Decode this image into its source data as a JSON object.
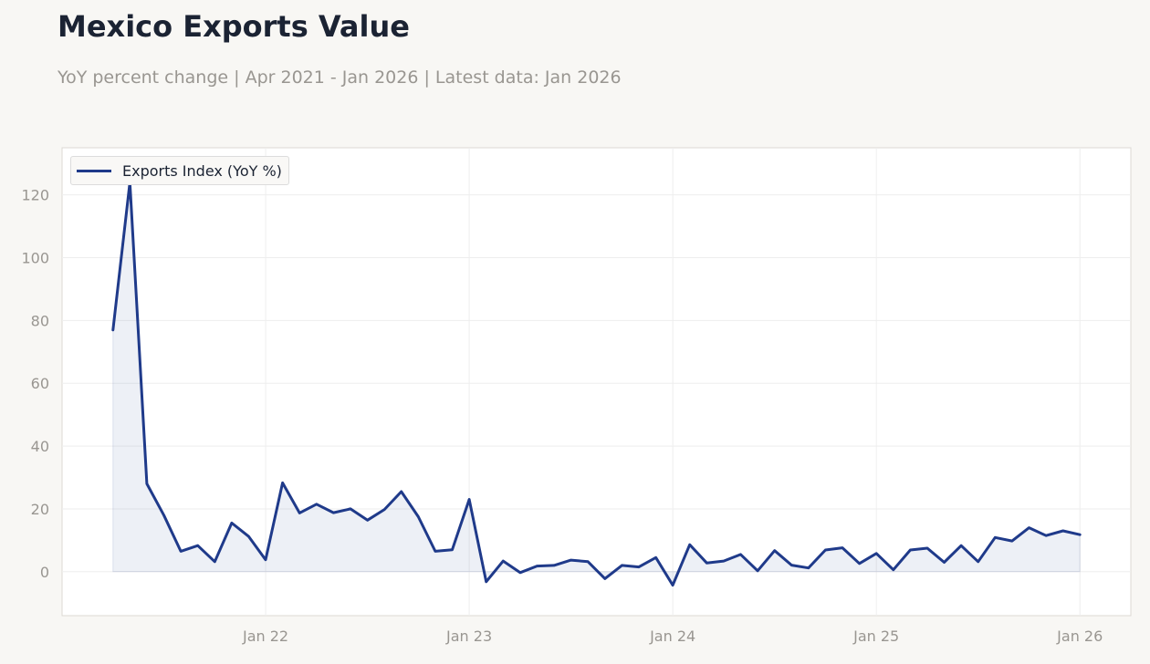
{
  "title": "Mexico Exports Value",
  "subtitle": "YoY percent change | Apr 2021 - Jan 2026 | Latest data: Jan 2026",
  "chart_data": {
    "type": "area",
    "title": "Mexico Exports Value",
    "subtitle": "YoY percent change | Apr 2021 - Jan 2026 | Latest data: Jan 2026",
    "xlabel": "",
    "ylabel": "",
    "ylim": [
      -14,
      135
    ],
    "xlim": [
      "2021-01",
      "2026-04"
    ],
    "yticks": [
      0,
      20,
      40,
      60,
      80,
      100,
      120
    ],
    "xticks": [
      {
        "date": "2022-01",
        "label": "Jan 22"
      },
      {
        "date": "2023-01",
        "label": "Jan 23"
      },
      {
        "date": "2024-01",
        "label": "Jan 24"
      },
      {
        "date": "2025-01",
        "label": "Jan 25"
      },
      {
        "date": "2026-01",
        "label": "Jan 26"
      }
    ],
    "grid": true,
    "legend_position": "top-left",
    "series": [
      {
        "name": "Exports Index (YoY %)",
        "color": "#1f3a8a",
        "fill": true,
        "x": [
          "2021-04",
          "2021-05",
          "2021-06",
          "2021-07",
          "2021-08",
          "2021-09",
          "2021-10",
          "2021-11",
          "2021-12",
          "2022-01",
          "2022-02",
          "2022-03",
          "2022-04",
          "2022-05",
          "2022-06",
          "2022-07",
          "2022-08",
          "2022-09",
          "2022-10",
          "2022-11",
          "2022-12",
          "2023-01",
          "2023-02",
          "2023-03",
          "2023-04",
          "2023-05",
          "2023-06",
          "2023-07",
          "2023-08",
          "2023-09",
          "2023-10",
          "2023-11",
          "2023-12",
          "2024-01",
          "2024-02",
          "2024-03",
          "2024-04",
          "2024-05",
          "2024-06",
          "2024-07",
          "2024-08",
          "2024-09",
          "2024-10",
          "2024-11",
          "2024-12",
          "2025-01",
          "2025-02",
          "2025-03",
          "2025-04",
          "2025-05",
          "2025-06",
          "2025-07",
          "2025-08",
          "2025-09",
          "2025-10",
          "2025-11",
          "2025-12",
          "2026-01"
        ],
        "values": [
          77,
          124,
          28,
          18,
          6.5,
          8.3,
          3.2,
          15.5,
          11.2,
          3.8,
          28.3,
          18.7,
          21.5,
          18.8,
          20,
          16.4,
          19.8,
          25.5,
          17.5,
          6.5,
          7,
          23,
          -3.2,
          3.4,
          -0.3,
          1.8,
          2,
          3.7,
          3.2,
          -2.2,
          2,
          1.5,
          4.5,
          -4.3,
          8.6,
          2.8,
          3.4,
          5.5,
          0.3,
          6.7,
          2.1,
          1.2,
          6.9,
          7.6,
          2.6,
          5.8,
          0.6,
          6.9,
          7.5,
          3,
          8.3,
          3.2,
          10.9,
          9.8,
          14,
          11.5,
          13,
          11.8
        ]
      }
    ]
  },
  "colors": {
    "background": "#f8f7f4",
    "plot_background": "#ffffff",
    "line": "#1f3a8a",
    "fill": "rgba(31,58,138,0.08)",
    "text_muted": "#999691",
    "title": "#1b2333"
  }
}
